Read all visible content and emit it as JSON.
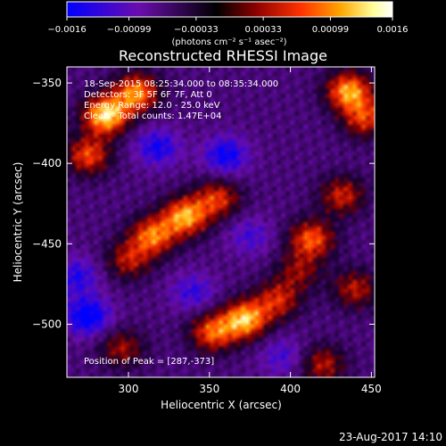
{
  "chart_data": {
    "type": "heatmap",
    "title": "Reconstructed RHESSI Image",
    "xlabel": "Heliocentric X (arcsec)",
    "ylabel": "Heliocentric Y (arcsec)",
    "xlim": [
      262,
      452
    ],
    "ylim": [
      -533,
      -340
    ],
    "x_ticks": [
      300,
      350,
      400,
      450
    ],
    "x_tick_labels": [
      "300",
      "350",
      "400",
      "450"
    ],
    "y_ticks": [
      -350,
      -400,
      -450,
      -500
    ],
    "y_tick_labels": [
      "−350",
      "−400",
      "−450",
      "−500"
    ],
    "colorbar": {
      "min": -0.0016,
      "max": 0.0016,
      "ticks": [
        -0.0016,
        -0.00099,
        -0.00033,
        0.00033,
        0.00099,
        0.0016
      ],
      "tick_labels": [
        "−0.0016",
        "−0.00099",
        "−0.00033",
        "0.00033",
        "0.00099",
        "0.0016"
      ],
      "units_label": "(photons cm⁻² s⁻¹ asec⁻²)",
      "colors": [
        "#0000ff",
        "#6a0dad",
        "#000000",
        "#8b0000",
        "#ff3300",
        "#ffa500",
        "#ffff99",
        "#ffffff"
      ]
    },
    "annotations": {
      "time_range": "18-Sep-2015 08:25:34.000 to 08:35:34.000",
      "detectors": "Detectors: 3F 5F 6F 7F, Att 0",
      "energy": "Energy Range: 12.0 - 25.0 keV",
      "counts": "Clean - Total counts: 1.47E+04",
      "peak": "Position of Peak = [287,-373]"
    },
    "hot_sources": [
      {
        "x": 286,
        "y": -370,
        "level": 1.0
      },
      {
        "x": 305,
        "y": -356,
        "level": 0.8
      },
      {
        "x": 275,
        "y": -395,
        "level": 0.65
      },
      {
        "x": 335,
        "y": -433,
        "level": 0.85
      },
      {
        "x": 315,
        "y": -445,
        "level": 0.75
      },
      {
        "x": 355,
        "y": -422,
        "level": 0.6
      },
      {
        "x": 300,
        "y": -460,
        "level": 0.5
      },
      {
        "x": 372,
        "y": -497,
        "level": 0.9
      },
      {
        "x": 352,
        "y": -505,
        "level": 0.7
      },
      {
        "x": 392,
        "y": -485,
        "level": 0.55
      },
      {
        "x": 436,
        "y": -355,
        "level": 0.85
      },
      {
        "x": 446,
        "y": -372,
        "level": 0.6
      },
      {
        "x": 413,
        "y": -447,
        "level": 0.7
      },
      {
        "x": 432,
        "y": -420,
        "level": 0.55
      },
      {
        "x": 440,
        "y": -478,
        "level": 0.5
      },
      {
        "x": 405,
        "y": -467,
        "level": 0.4
      },
      {
        "x": 296,
        "y": -515,
        "level": 0.45
      },
      {
        "x": 420,
        "y": -525,
        "level": 0.5
      }
    ],
    "cold_sources": [
      {
        "x": 275,
        "y": -495,
        "level": -0.6
      },
      {
        "x": 268,
        "y": -470,
        "level": -0.4
      },
      {
        "x": 318,
        "y": -390,
        "level": -0.45
      },
      {
        "x": 360,
        "y": -395,
        "level": -0.5
      },
      {
        "x": 340,
        "y": -480,
        "level": -0.35
      },
      {
        "x": 395,
        "y": -520,
        "level": -0.3
      },
      {
        "x": 375,
        "y": -445,
        "level": -0.3
      }
    ]
  },
  "footer": {
    "date": "23-Aug-2017 14:10"
  }
}
